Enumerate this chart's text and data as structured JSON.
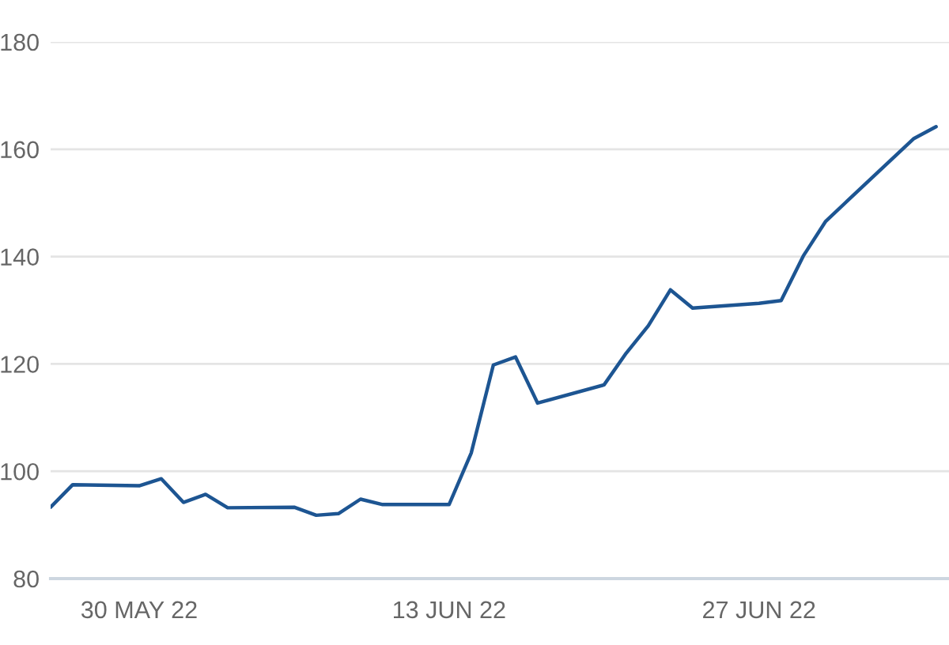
{
  "chart_data": {
    "type": "line",
    "x": [
      "2022-05-26",
      "2022-05-27",
      "2022-05-30",
      "2022-05-31",
      "2022-06-01",
      "2022-06-02",
      "2022-06-03",
      "2022-06-06",
      "2022-06-07",
      "2022-06-08",
      "2022-06-09",
      "2022-06-10",
      "2022-06-13",
      "2022-06-14",
      "2022-06-15",
      "2022-06-16",
      "2022-06-17",
      "2022-06-20",
      "2022-06-21",
      "2022-06-22",
      "2022-06-23",
      "2022-06-24",
      "2022-06-27",
      "2022-06-28",
      "2022-06-29",
      "2022-06-30",
      "2022-07-01",
      "2022-07-04",
      "2022-07-05"
    ],
    "series": [
      {
        "color": "#1d5592",
        "values": [
          93.3,
          97.5,
          97.3,
          98.6,
          94.2,
          95.7,
          93.2,
          93.3,
          91.8,
          92.1,
          94.8,
          93.8,
          93.8,
          103.4,
          119.8,
          121.3,
          112.7,
          116.1,
          122.0,
          127.1,
          133.8,
          130.4,
          131.3,
          131.8,
          140.1,
          146.5,
          150.4,
          162.0,
          164.2
        ]
      }
    ],
    "xlim": [
      "2022-05-26",
      "2022-07-05T14:00"
    ],
    "xticks": [
      {
        "value": "2022-05-30",
        "label": "30 MAY 22"
      },
      {
        "value": "2022-06-13",
        "label": "13 JUN 22"
      },
      {
        "value": "2022-06-27",
        "label": "27 JUN 22"
      }
    ],
    "ylim": [
      80,
      180
    ],
    "yticks": [
      80,
      100,
      120,
      140,
      160,
      180
    ],
    "grid": "y",
    "marker": "none",
    "line_style": "solid"
  }
}
